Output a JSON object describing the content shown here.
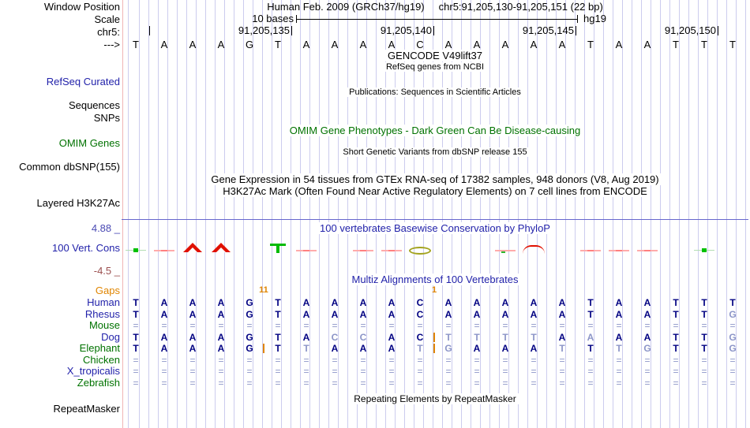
{
  "header": {
    "window_position_label": "Window Position",
    "assembly_title": "Human Feb. 2009 (GRCh37/hg19)",
    "range_title": "chr5:91,205,130-91,205,151 (22 bp)",
    "scale_label": "Scale",
    "scale_value": "10 bases",
    "genome": "hg19",
    "chrom_label": "chr5:",
    "strand_arrow": "--->",
    "coordinate_ticks": [
      {
        "label": "",
        "base_right_edge": 1
      },
      {
        "label": "91,205,135",
        "base_right_edge": 6
      },
      {
        "label": "91,205,140",
        "base_right_edge": 11
      },
      {
        "label": "91,205,145",
        "base_right_edge": 16
      },
      {
        "label": "91,205,150",
        "base_right_edge": 21
      }
    ]
  },
  "sequence": {
    "bases": "TAAAGTAAAACAAAAATAATTT"
  },
  "tracks": {
    "refseq_label": "RefSeq Curated",
    "gencode_title": "GENCODE V49lift37",
    "refseq_subtitle": "RefSeq genes from NCBI",
    "publications_title": "Publications: Sequences in Scientific Articles",
    "sequences_label": "Sequences",
    "snps_label": "SNPs",
    "omim_title": "OMIM Gene Phenotypes - Dark Green Can Be Disease-causing",
    "omim_label": "OMIM Genes",
    "dbsnp_title": "Short Genetic Variants from dbSNP release 155",
    "dbsnp_label": "Common dbSNP(155)",
    "gtex_title": "Gene Expression in 54 tissues from GTEx RNA-seq of 17382 samples, 948 donors (V8, Aug 2019)",
    "h3k27ac_title": "H3K27Ac Mark (Often Found Near Active Regulatory Elements) on 7 cell lines from ENCODE",
    "h3k27ac_label": "Layered H3K27Ac",
    "repeat_title": "Repeating Elements by RepeatMasker",
    "repeat_label": "RepeatMasker"
  },
  "conservation": {
    "title": "100 vertebrates Basewise Conservation by PhyloP",
    "label": "100 Vert. Cons",
    "upper_limit": "4.88 _",
    "lower_limit": "-4.5 _",
    "marks": [
      {
        "base": 1,
        "type": "green_point"
      },
      {
        "base": 2,
        "type": "red_line"
      },
      {
        "base": 3,
        "type": "red_peak"
      },
      {
        "base": 4,
        "type": "red_peak"
      },
      {
        "base": 6,
        "type": "green_tee"
      },
      {
        "base": 7,
        "type": "red_line"
      },
      {
        "base": 9,
        "type": "red_line"
      },
      {
        "base": 10,
        "type": "red_line"
      },
      {
        "base": 11,
        "type": "olive_oval"
      },
      {
        "base": 14,
        "type": "red_line_dot"
      },
      {
        "base": 15,
        "type": "red_arc"
      },
      {
        "base": 17,
        "type": "red_line"
      },
      {
        "base": 18,
        "type": "red_line"
      },
      {
        "base": 19,
        "type": "red_line"
      },
      {
        "base": 21,
        "type": "green_point"
      }
    ]
  },
  "multiz": {
    "title": "Multiz Alignments of 100 Vertebrates",
    "gaps_label": "Gaps",
    "gap_annotations": [
      {
        "after_base": 5,
        "text": "11"
      },
      {
        "after_base": 11,
        "text": "1"
      }
    ],
    "insertions": [
      {
        "species": "Elephant",
        "after_base": 5
      },
      {
        "species": "Dog",
        "after_base": 11
      },
      {
        "species": "Elephant",
        "after_base": 11
      }
    ],
    "encoding": "lowercase letter = faint base, '=' = unaligned marker",
    "rows": [
      {
        "name": "Human",
        "label_color": "blue",
        "bases": "TAAAGTAAAACAAAAATAATTT"
      },
      {
        "name": "Rhesus",
        "label_color": "blue",
        "bases": "TAAAGTAAAACAAAAATAATTg"
      },
      {
        "name": "Mouse",
        "label_color": "green",
        "bases": "======================"
      },
      {
        "name": "Dog",
        "label_color": "blue",
        "bases": "TAAAGTAccACttttAaAATTg"
      },
      {
        "name": "Elephant",
        "label_color": "green",
        "bases": "TAAAGTtAAAtgAAAtTtgTTg"
      },
      {
        "name": "Chicken",
        "label_color": "green",
        "bases": "======================"
      },
      {
        "name": "X_tropicalis",
        "label_color": "blue",
        "bases": "======================"
      },
      {
        "name": "Zebrafish",
        "label_color": "green",
        "bases": "======================"
      }
    ]
  },
  "colors": {
    "grid": "#ccccee",
    "window_separator": "#f0b4b4",
    "navy_base": "#000082",
    "faint_base": "#8c95c8",
    "orange": "#e08500",
    "track_blue": "#2222aa",
    "track_green": "#007200",
    "upper_limit_blue": "#4a4ab4",
    "lower_limit_maroon": "#9b4f4f",
    "phylop_line_blue": "#6666cc",
    "conserved_green": "#00bb00",
    "nonconserved_red": "#e01000"
  }
}
